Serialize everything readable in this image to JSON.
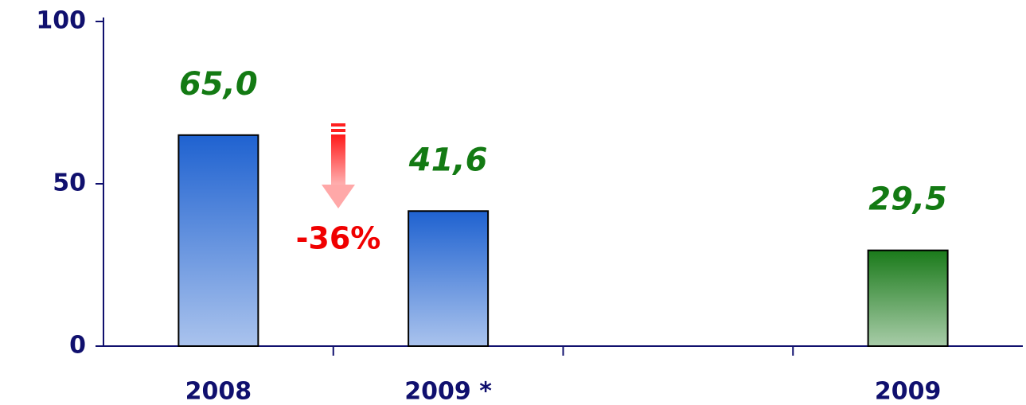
{
  "chart_data": {
    "type": "bar",
    "categories": [
      "2008",
      "2009 *",
      null,
      "2009"
    ],
    "values": [
      65.0,
      41.6,
      null,
      29.5
    ],
    "value_labels": [
      "65,0",
      "41,6",
      null,
      "29,5"
    ],
    "colors": [
      "#1f62d0",
      "#1f62d0",
      null,
      "#1a7a1a"
    ],
    "ylim": [
      0,
      100
    ],
    "yticks": [
      0,
      50,
      100
    ],
    "annotations": [
      {
        "text": "-36%"
      }
    ]
  }
}
